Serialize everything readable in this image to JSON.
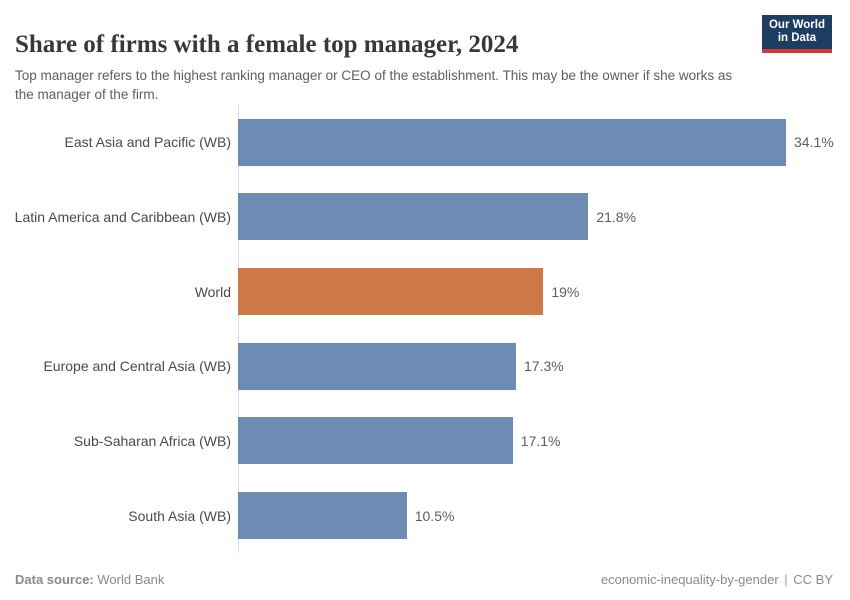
{
  "header": {
    "logo": {
      "line1": "Our World",
      "line2": "in Data",
      "bg_color": "#1d3d63",
      "underline_color": "#cc3b34"
    }
  },
  "chart_data": {
    "type": "bar",
    "orientation": "horizontal",
    "title": "Share of firms with a female top manager, 2024",
    "subtitle": "Top manager refers to the highest ranking manager or CEO of the establishment. This may be the owner if she works as the manager of the firm.",
    "categories": [
      "East Asia and Pacific (WB)",
      "Latin America and Caribbean (WB)",
      "World",
      "Europe and Central Asia (WB)",
      "Sub-Saharan Africa (WB)",
      "South Asia (WB)"
    ],
    "values": [
      34.1,
      21.8,
      19,
      17.3,
      17.1,
      10.5
    ],
    "value_labels": [
      "34.1%",
      "21.8%",
      "19%",
      "17.3%",
      "17.1%",
      "10.5%"
    ],
    "unit": "%",
    "xlim": [
      0,
      34.1
    ],
    "grid": false,
    "legend": "none",
    "highlight_category": "World",
    "colors": {
      "bar_default": "#6d8bb3",
      "bar_highlight": "#cd7a48",
      "axis_line": "#dcdcdc"
    }
  },
  "footer": {
    "source_label": "Data source:",
    "source_value": "World Bank",
    "slug": "economic-inequality-by-gender",
    "license": "CC BY"
  }
}
